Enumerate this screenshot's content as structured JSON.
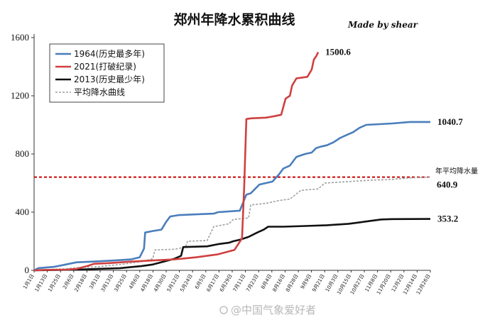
{
  "chart_data": {
    "type": "line",
    "title": "郑州年降水累积曲线",
    "credit": "Made by shear",
    "ylim": [
      0,
      1600
    ],
    "yticks": [
      "0",
      "400",
      "800",
      "1200",
      "1600"
    ],
    "xticks": [
      "1月1日",
      "1月13日",
      "1月25日",
      "2月6日",
      "2月18日",
      "3月1日",
      "3月13日",
      "3月25日",
      "4月6日",
      "4月18日",
      "4月30日",
      "5月12日",
      "5月24日",
      "6月5日",
      "6月17日",
      "6月29日",
      "7月11日",
      "7月23日",
      "8月4日",
      "8月16日",
      "8月28日",
      "9月9日",
      "9月21日",
      "10月3日",
      "10月15日",
      "10月27日",
      "11月8日",
      "11月20日",
      "12月2日",
      "12月14日",
      "12月26日"
    ],
    "grid": false,
    "legend_position": "top-left",
    "reference_line": {
      "label": "年平均降水量",
      "value": 640.9,
      "value_label": "640.9",
      "color": "#cc0000"
    },
    "series": [
      {
        "name": "1964(历史最多年)",
        "color": "#4a7ebb",
        "end_label": "1040.7",
        "points": [
          [
            1,
            0
          ],
          [
            5,
            15
          ],
          [
            20,
            25
          ],
          [
            30,
            40
          ],
          [
            40,
            55
          ],
          [
            55,
            60
          ],
          [
            75,
            68
          ],
          [
            90,
            75
          ],
          [
            98,
            90
          ],
          [
            100,
            120
          ],
          [
            102,
            150
          ],
          [
            103,
            260
          ],
          [
            110,
            270
          ],
          [
            118,
            280
          ],
          [
            122,
            330
          ],
          [
            126,
            370
          ],
          [
            134,
            380
          ],
          [
            150,
            385
          ],
          [
            166,
            390
          ],
          [
            170,
            400
          ],
          [
            190,
            410
          ],
          [
            196,
            520
          ],
          [
            200,
            530
          ],
          [
            204,
            560
          ],
          [
            208,
            590
          ],
          [
            214,
            600
          ],
          [
            220,
            610
          ],
          [
            226,
            660
          ],
          [
            230,
            700
          ],
          [
            236,
            720
          ],
          [
            242,
            780
          ],
          [
            250,
            800
          ],
          [
            256,
            810
          ],
          [
            260,
            840
          ],
          [
            264,
            850
          ],
          [
            270,
            860
          ],
          [
            276,
            880
          ],
          [
            282,
            910
          ],
          [
            288,
            930
          ],
          [
            294,
            950
          ],
          [
            300,
            980
          ],
          [
            306,
            1000
          ],
          [
            318,
            1005
          ],
          [
            330,
            1010
          ],
          [
            346,
            1020
          ],
          [
            365,
            1020
          ]
        ]
      },
      {
        "name": "2021(打破纪录)",
        "color": "#d04040",
        "end_label": "1500.6",
        "points": [
          [
            1,
            0
          ],
          [
            10,
            3
          ],
          [
            30,
            5
          ],
          [
            40,
            10
          ],
          [
            50,
            30
          ],
          [
            56,
            45
          ],
          [
            70,
            50
          ],
          [
            90,
            60
          ],
          [
            110,
            68
          ],
          [
            130,
            75
          ],
          [
            150,
            90
          ],
          [
            170,
            110
          ],
          [
            185,
            140
          ],
          [
            192,
            220
          ],
          [
            194,
            580
          ],
          [
            196,
            1040
          ],
          [
            200,
            1045
          ],
          [
            214,
            1050
          ],
          [
            222,
            1060
          ],
          [
            228,
            1070
          ],
          [
            232,
            1180
          ],
          [
            236,
            1200
          ],
          [
            238,
            1270
          ],
          [
            242,
            1320
          ],
          [
            252,
            1330
          ],
          [
            256,
            1380
          ],
          [
            258,
            1450
          ],
          [
            260,
            1470
          ],
          [
            262,
            1500
          ]
        ]
      },
      {
        "name": "2013(历史最少年)",
        "color": "#111111",
        "end_label": "353.2",
        "points": [
          [
            1,
            0
          ],
          [
            20,
            2
          ],
          [
            40,
            5
          ],
          [
            60,
            10
          ],
          [
            80,
            15
          ],
          [
            100,
            30
          ],
          [
            110,
            40
          ],
          [
            120,
            60
          ],
          [
            130,
            80
          ],
          [
            136,
            100
          ],
          [
            138,
            160
          ],
          [
            160,
            165
          ],
          [
            170,
            180
          ],
          [
            180,
            190
          ],
          [
            184,
            200
          ],
          [
            190,
            210
          ],
          [
            198,
            230
          ],
          [
            206,
            260
          ],
          [
            212,
            280
          ],
          [
            216,
            300
          ],
          [
            230,
            300
          ],
          [
            250,
            305
          ],
          [
            270,
            310
          ],
          [
            290,
            320
          ],
          [
            300,
            330
          ],
          [
            310,
            340
          ],
          [
            320,
            350
          ],
          [
            330,
            352
          ],
          [
            365,
            353
          ]
        ]
      },
      {
        "name": "平均降水曲线",
        "color": "#a0a0a0",
        "end_label": "",
        "points": [
          [
            1,
            0
          ],
          [
            10,
            5
          ],
          [
            20,
            8
          ],
          [
            30,
            10
          ],
          [
            40,
            18
          ],
          [
            60,
            25
          ],
          [
            80,
            40
          ],
          [
            100,
            60
          ],
          [
            110,
            80
          ],
          [
            112,
            140
          ],
          [
            130,
            145
          ],
          [
            140,
            160
          ],
          [
            142,
            200
          ],
          [
            160,
            205
          ],
          [
            166,
            300
          ],
          [
            180,
            320
          ],
          [
            184,
            350
          ],
          [
            198,
            360
          ],
          [
            200,
            450
          ],
          [
            214,
            460
          ],
          [
            226,
            480
          ],
          [
            236,
            490
          ],
          [
            246,
            550
          ],
          [
            262,
            560
          ],
          [
            268,
            600
          ],
          [
            290,
            610
          ],
          [
            310,
            620
          ],
          [
            330,
            625
          ],
          [
            345,
            635
          ],
          [
            365,
            641
          ]
        ]
      }
    ]
  },
  "watermark": "@中国气象爱好者"
}
